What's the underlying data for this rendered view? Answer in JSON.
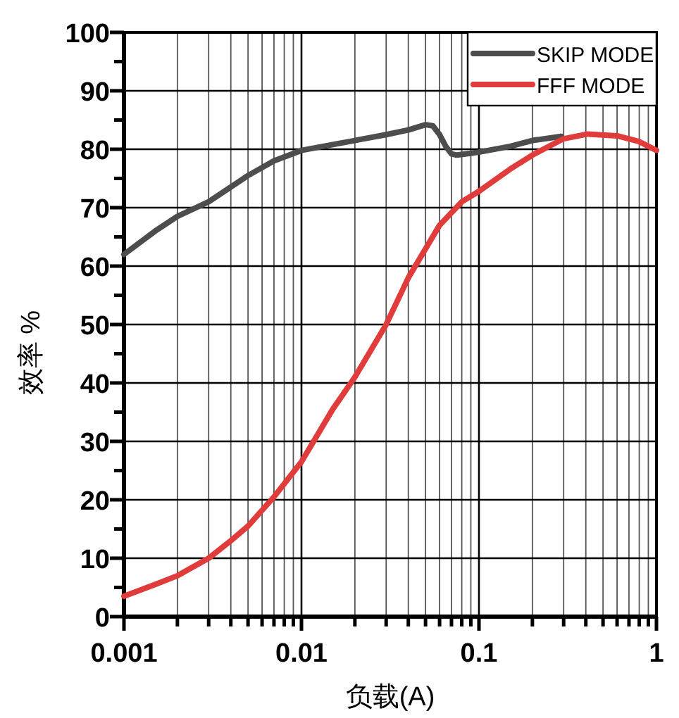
{
  "chart_data": {
    "type": "line",
    "xlabel": "负载(A)",
    "ylabel": "效率 %",
    "log": "x",
    "grid": true,
    "legend": "top right",
    "xlim": [
      0.001,
      1
    ],
    "ylim": [
      0,
      100
    ],
    "xticks": [
      0.001,
      {
        "value": 0.002,
        "label": null
      },
      {
        "value": 0.003,
        "label": null
      },
      {
        "value": 0.004,
        "label": null
      },
      {
        "value": 0.005,
        "label": null
      },
      {
        "value": 0.006,
        "label": null
      },
      {
        "value": 0.007,
        "label": null
      },
      {
        "value": 0.008,
        "label": null
      },
      {
        "value": 0.009,
        "label": null
      },
      0.01,
      {
        "value": 0.02,
        "label": null
      },
      {
        "value": 0.03,
        "label": null
      },
      {
        "value": 0.04,
        "label": null
      },
      {
        "value": 0.05,
        "label": null
      },
      {
        "value": 0.06,
        "label": null
      },
      {
        "value": 0.07,
        "label": null
      },
      {
        "value": 0.08,
        "label": null
      },
      {
        "value": 0.09,
        "label": null
      },
      0.1,
      {
        "value": 0.2,
        "label": null
      },
      {
        "value": 0.3,
        "label": null
      },
      {
        "value": 0.4,
        "label": null
      },
      {
        "value": 0.5,
        "label": null
      },
      {
        "value": 0.6,
        "label": null
      },
      {
        "value": 0.7,
        "label": null
      },
      {
        "value": 0.8,
        "label": null
      },
      {
        "value": 0.9,
        "label": null
      },
      1
    ],
    "yticks": [
      0,
      {
        "value": 5,
        "label": null
      },
      10,
      {
        "value": 15,
        "label": null
      },
      20,
      {
        "value": 25,
        "label": null
      },
      30,
      {
        "value": 35,
        "label": null
      },
      40,
      {
        "value": 45,
        "label": null
      },
      50,
      {
        "value": 55,
        "label": null
      },
      60,
      {
        "value": 65,
        "label": null
      },
      70,
      {
        "value": 75,
        "label": null
      },
      80,
      {
        "value": 85,
        "label": null
      },
      90,
      {
        "value": 95,
        "label": null
      },
      100
    ],
    "series": [
      {
        "name": "SKIP MODE",
        "color": "#4d4d4d",
        "x": [
          0.001,
          0.0015,
          0.002,
          0.003,
          0.005,
          0.007,
          0.01,
          0.015,
          0.02,
          0.03,
          0.04,
          0.05,
          0.055,
          0.06,
          0.065,
          0.07,
          0.075,
          0.09,
          0.1,
          0.15,
          0.2,
          0.29
        ],
        "values": [
          62,
          66,
          68.5,
          71,
          75.5,
          78,
          79.8,
          80.8,
          81.5,
          82.5,
          83.3,
          84.2,
          84,
          82.5,
          80.5,
          79.2,
          79,
          79.3,
          79.5,
          80.5,
          81.5,
          82.2
        ]
      },
      {
        "name": "FFF MODE",
        "color": "#e03c3c",
        "x": [
          0.001,
          0.0015,
          0.002,
          0.003,
          0.004,
          0.005,
          0.007,
          0.01,
          0.015,
          0.02,
          0.03,
          0.04,
          0.06,
          0.08,
          0.1,
          0.15,
          0.2,
          0.3,
          0.41,
          0.6,
          0.8,
          1
        ],
        "values": [
          3.5,
          5.5,
          7,
          10,
          13,
          15.5,
          20.5,
          26.5,
          35.5,
          41,
          50,
          58,
          67,
          71,
          72.8,
          76.6,
          79,
          81.8,
          82.6,
          82.3,
          81.3,
          79.8
        ]
      }
    ]
  }
}
